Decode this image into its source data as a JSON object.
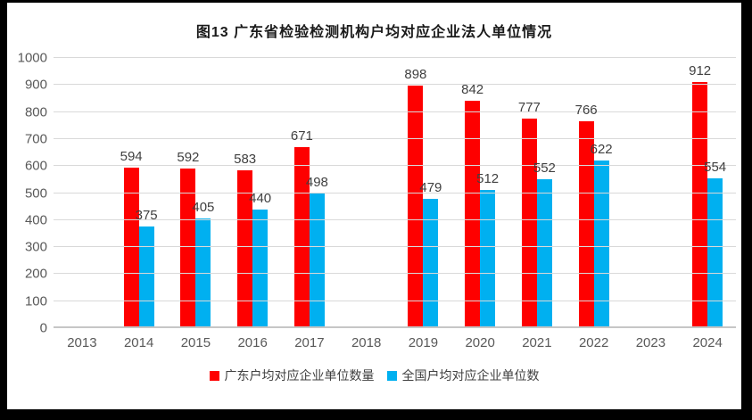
{
  "chart_data": {
    "type": "bar",
    "title": "图13 广东省检验检测机构户均对应企业法人单位情况",
    "categories": [
      "2013",
      "2014",
      "2015",
      "2016",
      "2017",
      "2018",
      "2019",
      "2020",
      "2021",
      "2022",
      "2023",
      "2024"
    ],
    "series": [
      {
        "name": "广东户均对应企业单位数量",
        "color": "#fe0000",
        "values": [
          null,
          594,
          592,
          583,
          671,
          null,
          898,
          842,
          777,
          766,
          null,
          912
        ]
      },
      {
        "name": "全国户均对应企业单位数",
        "color": "#00b0f0",
        "values": [
          null,
          375,
          405,
          440,
          498,
          null,
          479,
          512,
          552,
          622,
          null,
          554
        ]
      }
    ],
    "xlabel": "",
    "ylabel": "",
    "ylim": [
      0,
      1000
    ],
    "ytick_step": 100,
    "grid": true,
    "legend_position": "bottom"
  },
  "colors": {
    "frame_border": "#000000",
    "gridline": "#d9d9d9",
    "axis_text": "#595959",
    "data_label_text": "#404040",
    "title_text": "#1a1a1a",
    "background": "#ffffff"
  }
}
